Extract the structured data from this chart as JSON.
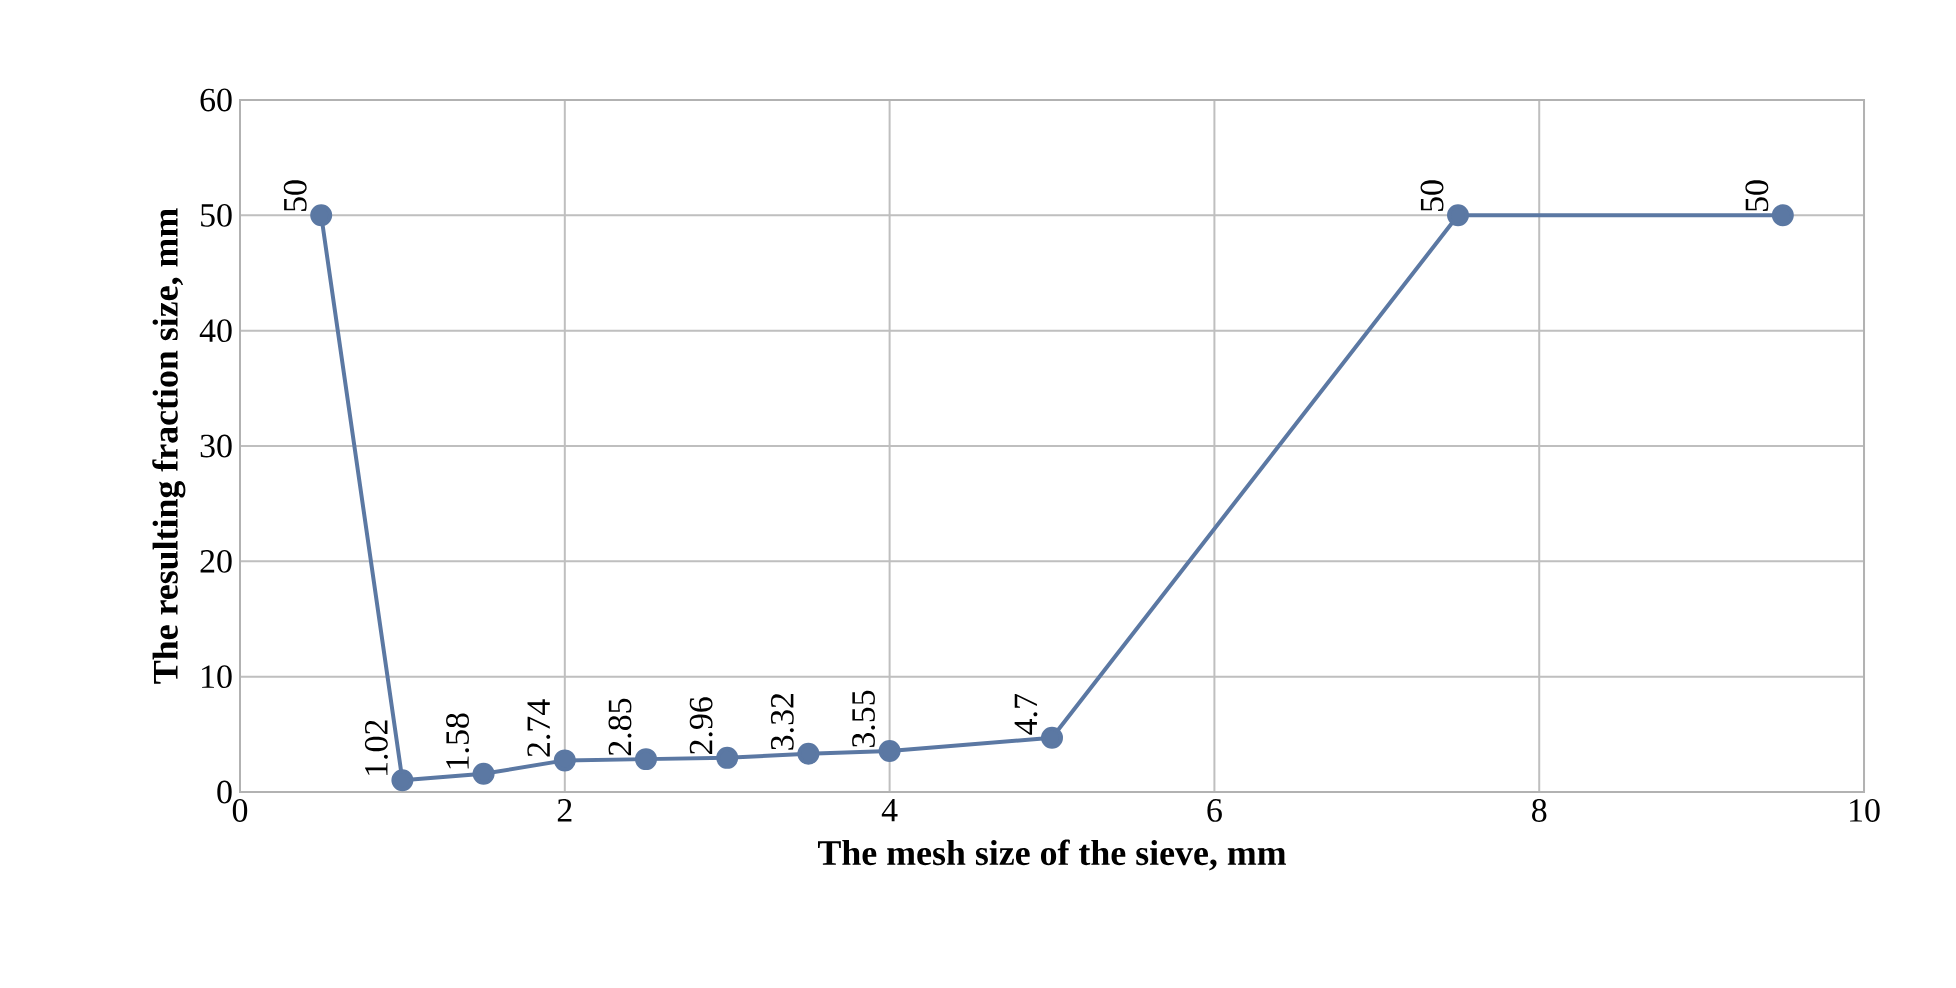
{
  "chart_data": {
    "type": "line",
    "xlabel": "The mesh size of the sieve, mm",
    "ylabel": "The resulting  fraction size, mm",
    "x": [
      0.5,
      1,
      1.5,
      2,
      2.5,
      3,
      3.5,
      4,
      5,
      7.5,
      9.5
    ],
    "series": [
      {
        "color": "#5b78a3",
        "values": [
          50,
          1.02,
          1.58,
          2.74,
          2.85,
          2.96,
          3.32,
          3.55,
          4.7,
          50,
          50
        ],
        "value_labels": [
          "50",
          "1.02",
          "1.58",
          "2.74",
          "2.85",
          "2.96",
          "3.32",
          "3.55",
          "4.7",
          "50",
          "50"
        ]
      }
    ],
    "xlim": [
      0,
      10
    ],
    "xticks": [
      0,
      2,
      4,
      6,
      8,
      10
    ],
    "ylim": [
      0,
      60
    ],
    "yticks": [
      0,
      10,
      20,
      30,
      40,
      50,
      60
    ],
    "grid": true,
    "marker": "circle",
    "line_style": "solid"
  }
}
